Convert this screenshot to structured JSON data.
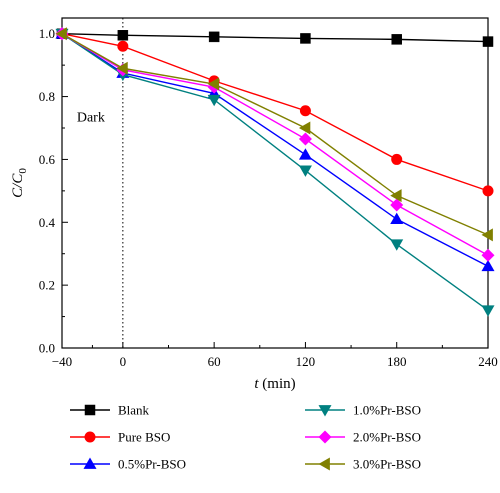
{
  "chart_data": {
    "type": "line",
    "x": [
      -40,
      0,
      60,
      120,
      180,
      240
    ],
    "xticks": [
      "−40",
      "0",
      "60",
      "120",
      "180",
      "240"
    ],
    "yticks": [
      "0.0",
      "0.2",
      "0.4",
      "0.6",
      "0.8",
      "1.0"
    ],
    "xlim": [
      -40,
      240
    ],
    "ylim": [
      0,
      1.05
    ],
    "xlabel": {
      "italic": "t",
      "rest": " (min)"
    },
    "ylabel": {
      "base": "C/C",
      "sub": "0"
    },
    "annotation": {
      "text": "Dark",
      "x": 0
    },
    "grid": false,
    "legend_position": "bottom",
    "series": [
      {
        "name": "Blank",
        "color": "#000000",
        "marker": "square",
        "values": [
          1.0,
          0.995,
          0.99,
          0.985,
          0.982,
          0.975
        ]
      },
      {
        "name": "Pure BSO",
        "color": "#ff0000",
        "marker": "circle",
        "values": [
          1.0,
          0.96,
          0.85,
          0.755,
          0.6,
          0.5
        ]
      },
      {
        "name": "0.5%Pr-BSO",
        "color": "#0000ff",
        "marker": "triangle-up",
        "values": [
          1.0,
          0.875,
          0.81,
          0.615,
          0.41,
          0.26
        ]
      },
      {
        "name": "1.0%Pr-BSO",
        "color": "#008080",
        "marker": "triangle-down",
        "values": [
          1.0,
          0.87,
          0.79,
          0.565,
          0.33,
          0.12
        ]
      },
      {
        "name": "2.0%Pr-BSO",
        "color": "#ff00ff",
        "marker": "diamond",
        "values": [
          1.0,
          0.885,
          0.83,
          0.665,
          0.455,
          0.295
        ]
      },
      {
        "name": "3.0%Pr-BSO",
        "color": "#808000",
        "marker": "triangle-left",
        "values": [
          1.0,
          0.89,
          0.84,
          0.7,
          0.485,
          0.36
        ]
      }
    ]
  }
}
